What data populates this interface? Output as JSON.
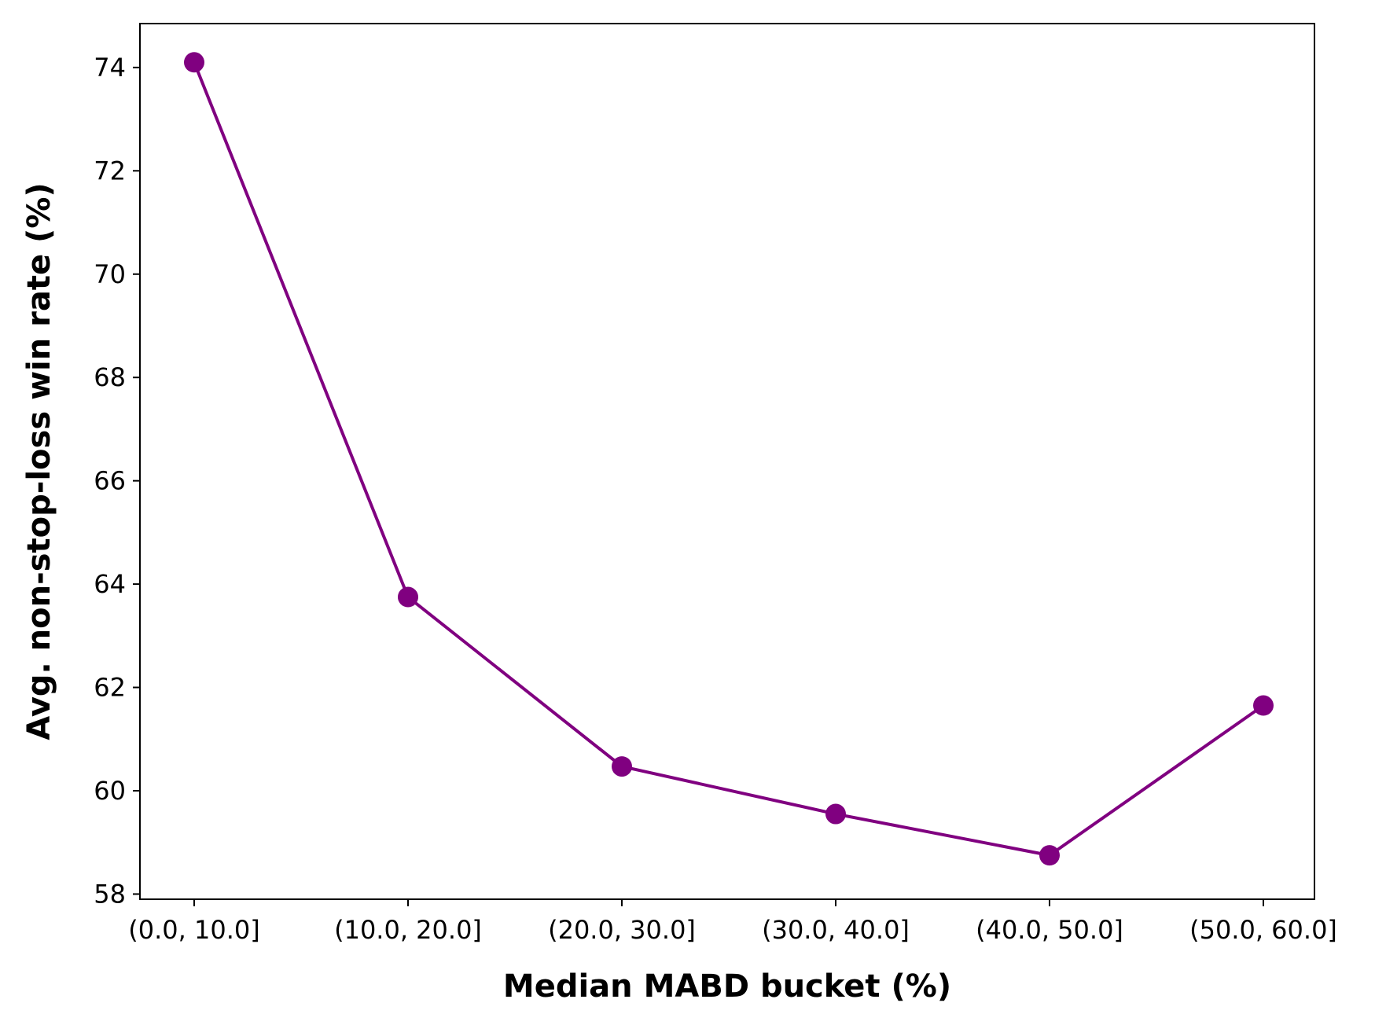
{
  "chart_data": {
    "type": "line",
    "title": "",
    "xlabel": "Median MABD bucket (%)",
    "ylabel": "Avg. non-stop-loss win rate (%)",
    "categories": [
      "(0.0, 10.0]",
      "(10.0, 20.0]",
      "(20.0, 30.0]",
      "(30.0, 40.0]",
      "(40.0, 50.0]",
      "(50.0, 60.0]"
    ],
    "series": [
      {
        "values": [
          74.1,
          63.75,
          60.47,
          59.55,
          58.75,
          61.65
        ],
        "color": "#800080",
        "marker": "circle"
      }
    ],
    "ylim": [
      57.9,
      74.85
    ],
    "yticks": [
      58,
      60,
      62,
      64,
      66,
      68,
      70,
      72,
      74
    ],
    "grid": false,
    "legend": "none"
  }
}
